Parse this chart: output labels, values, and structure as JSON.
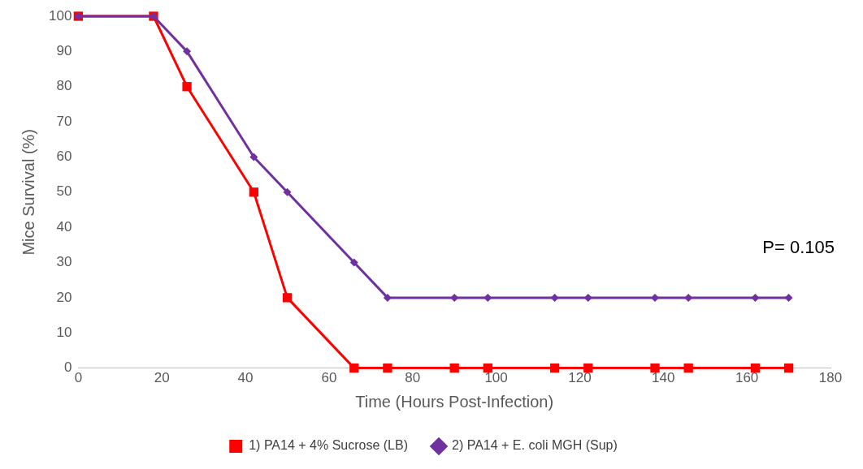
{
  "chart_data": {
    "type": "line",
    "xlabel": "Time (Hours Post-Infection)",
    "ylabel": "Mice Survival (%)",
    "x": [
      0,
      18,
      26,
      42,
      50,
      66,
      74,
      90,
      98,
      114,
      122,
      138,
      146,
      162,
      170
    ],
    "series": [
      {
        "name": "1) PA14 + 4% Sucrose (LB)",
        "color": "#ff0000",
        "marker": "square",
        "values": [
          100,
          100,
          80,
          50,
          20,
          0,
          0,
          0,
          0,
          0,
          0,
          0,
          0,
          0,
          0
        ]
      },
      {
        "name": "2) PA14 + E. coli MGH (Sup)",
        "color": "#7030a0",
        "marker": "diamond",
        "values": [
          100,
          100,
          90,
          60,
          50,
          30,
          20,
          20,
          20,
          20,
          20,
          20,
          20,
          20,
          20
        ]
      }
    ],
    "xlim": [
      0,
      180
    ],
    "xticks": [
      0,
      20,
      40,
      60,
      80,
      100,
      120,
      140,
      160,
      180
    ],
    "ylim": [
      0,
      100
    ],
    "yticks": [
      0,
      10,
      20,
      30,
      40,
      50,
      60,
      70,
      80,
      90,
      100
    ],
    "grid": false,
    "legend": "bottom",
    "line_style": "solid",
    "annotations": [
      "P= 0.105"
    ]
  }
}
